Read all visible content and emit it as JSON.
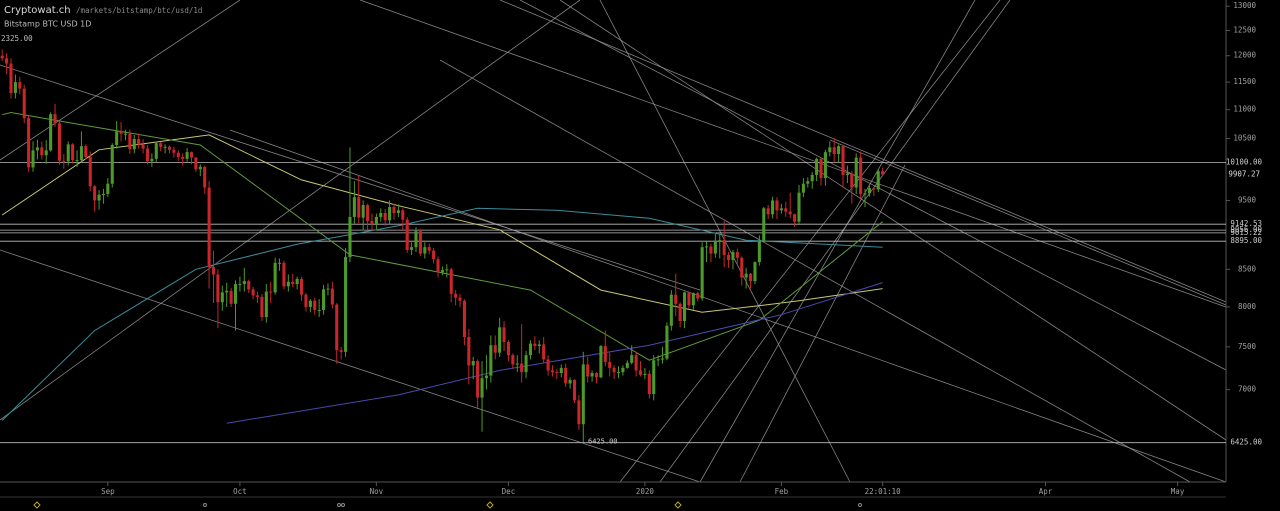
{
  "chart_data": {
    "type": "candlestick",
    "title": "Cryptowat.ch",
    "subtitle": "/markets/bitstamp/btc/usd/1d",
    "symbol": "Bitstamp BTC USD 1D",
    "corner_label": "2325.00",
    "log_scale": true,
    "grid": false,
    "up_color": "#4c9a2a",
    "down_color": "#c9262c",
    "xlim": [
      -0.5,
      278
    ],
    "ylim": [
      6030,
      13130
    ],
    "yticks": [
      13000,
      12500,
      12000,
      11500,
      11000,
      10500,
      9500,
      8500,
      8000,
      7500,
      7000
    ],
    "xticks": [
      {
        "value": 24,
        "label": "Sep"
      },
      {
        "value": 54,
        "label": "Oct"
      },
      {
        "value": 85,
        "label": "Nov"
      },
      {
        "value": 115,
        "label": "Dec"
      },
      {
        "value": 146,
        "label": "2020"
      },
      {
        "value": 177,
        "label": "Feb"
      },
      {
        "value": 200,
        "label": "22:01:10"
      },
      {
        "value": 237,
        "label": "Apr"
      },
      {
        "value": 267,
        "label": "May"
      }
    ],
    "levels": [
      {
        "value": 10100,
        "label": "10100.00"
      },
      {
        "value": 9142.53,
        "label": "9142.53"
      },
      {
        "value": 9056,
        "label": "9056.00"
      },
      {
        "value": 9015.22,
        "label": "9015.22"
      },
      {
        "value": 8895,
        "label": "8895.00"
      },
      {
        "value": 6425,
        "label": "6425.00"
      }
    ],
    "open": [
      12000,
      11950,
      11850,
      11300,
      11500,
      11380,
      10850,
      10020,
      10300,
      10350,
      10220,
      10300,
      10920,
      10760,
      10130,
      10120,
      10400,
      10140,
      10140,
      10370,
      10190,
      9720,
      9500,
      9590,
      9600,
      9760,
      10390,
      10620,
      10580,
      10580,
      10320,
      10490,
      10400,
      10330,
      10120,
      10160,
      10420,
      10360,
      10360,
      10310,
      10260,
      10190,
      10160,
      10270,
      10180,
      9990,
      10030,
      9700,
      8530,
      8430,
      8060,
      8190,
      8210,
      8040,
      8300,
      8300,
      8340,
      8230,
      8150,
      8130,
      7870,
      8200,
      8190,
      8590,
      8590,
      8270,
      8330,
      8300,
      8370,
      8160,
      8000,
      8080,
      7960,
      7960,
      8230,
      8240,
      8030,
      7460,
      7440,
      8670,
      9250,
      9550,
      9240,
      9430,
      9190,
      9150,
      9250,
      9310,
      9200,
      9400,
      9310,
      9350,
      9210,
      8770,
      8810,
      9040,
      8720,
      8810,
      8760,
      8640,
      8460,
      8490,
      8500,
      8170,
      8120,
      8080,
      7620,
      7280,
      7330,
      6910,
      7130,
      7160,
      7520,
      7430,
      7740,
      7560,
      7400,
      7290,
      7300,
      7200,
      7400,
      7540,
      7510,
      7530,
      7350,
      7220,
      7200,
      7190,
      7250,
      7070,
      7110,
      6880,
      6620,
      7290,
      7150,
      7190,
      7140,
      7510,
      7320,
      7250,
      7200,
      7200,
      7250,
      7310,
      7400,
      7220,
      7170,
      7180,
      6950,
      7340,
      7350,
      7360,
      7760,
      8160,
      8040,
      7820,
      8190,
      8020,
      8180,
      8110,
      8810,
      8820,
      8720,
      8900,
      8910,
      8700,
      8630,
      8740,
      8660,
      8390,
      8440,
      8340,
      8600,
      8900,
      9380,
      9290,
      9500,
      9350,
      9380,
      9330,
      9290,
      9180,
      9620,
      9760,
      9800,
      9900,
      10160,
      9850,
      10270,
      10350,
      10240,
      10370,
      9900,
      9920,
      9700,
      10180,
      9600,
      9610,
      9690,
      9670,
      9960
    ],
    "high": [
      12120,
      12050,
      11950,
      11640,
      11600,
      11450,
      10900,
      10450,
      10480,
      10450,
      10470,
      10950,
      11100,
      10800,
      10240,
      10450,
      10420,
      10300,
      10620,
      10400,
      10280,
      9740,
      9660,
      9680,
      9850,
      10420,
      10800,
      10780,
      10650,
      10650,
      10560,
      10580,
      10490,
      10390,
      10250,
      10450,
      10440,
      10400,
      10380,
      10360,
      10300,
      10250,
      10340,
      10280,
      10190,
      10070,
      10050,
      9800,
      8760,
      8500,
      8280,
      8320,
      8250,
      8350,
      8400,
      8520,
      8360,
      8260,
      8200,
      8170,
      8300,
      8330,
      8660,
      8650,
      8620,
      8430,
      8440,
      8400,
      8400,
      8180,
      8100,
      8120,
      8100,
      8290,
      8310,
      8330,
      8050,
      7500,
      8800,
      10350,
      9800,
      9900,
      9500,
      9450,
      9300,
      9300,
      9380,
      9370,
      9500,
      9450,
      9440,
      9380,
      9250,
      8880,
      9100,
      9070,
      8880,
      8860,
      8800,
      8680,
      8540,
      8570,
      8520,
      8220,
      8170,
      8100,
      7720,
      7380,
      7350,
      7330,
      7400,
      7640,
      7640,
      7860,
      7820,
      7580,
      7420,
      7400,
      7780,
      7450,
      7580,
      7630,
      7580,
      7620,
      7400,
      7280,
      7240,
      7290,
      7300,
      7140,
      7120,
      6940,
      7440,
      7380,
      7220,
      7200,
      7520,
      7700,
      7430,
      7280,
      7270,
      7280,
      7340,
      7520,
      7440,
      7330,
      7250,
      7220,
      7400,
      7400,
      7500,
      7800,
      8220,
      8440,
      8060,
      8200,
      8200,
      8190,
      8200,
      8880,
      8900,
      8860,
      9000,
      9000,
      9190,
      8740,
      8770,
      8790,
      8680,
      8520,
      8450,
      8610,
      8980,
      9400,
      9430,
      9560,
      9550,
      9450,
      9480,
      9620,
      9300,
      9740,
      9850,
      9860,
      9950,
      10180,
      10180,
      10310,
      10450,
      10500,
      10400,
      10390,
      10050,
      9960,
      10250,
      10280,
      9680,
      9750,
      9710,
      9990,
      10020
    ],
    "low": [
      11900,
      11650,
      11200,
      11200,
      11280,
      10760,
      9950,
      9950,
      10150,
      10150,
      10080,
      10280,
      10700,
      10060,
      10000,
      10050,
      10080,
      10030,
      10100,
      10150,
      9640,
      9330,
      9360,
      9450,
      9550,
      9700,
      10330,
      10450,
      10470,
      10240,
      10250,
      10330,
      10250,
      10070,
      10030,
      10110,
      10290,
      10250,
      10250,
      10180,
      10130,
      10050,
      10110,
      10070,
      9950,
      9880,
      9600,
      8240,
      8050,
      7730,
      7950,
      8000,
      8000,
      7700,
      8200,
      8200,
      8180,
      8100,
      8050,
      7820,
      7800,
      8050,
      8160,
      8480,
      8230,
      8200,
      8260,
      8230,
      8080,
      7940,
      7930,
      7900,
      7870,
      7900,
      8150,
      7980,
      7300,
      7350,
      7380,
      8600,
      9150,
      9160,
      9050,
      9060,
      9040,
      9070,
      9180,
      9120,
      9140,
      9210,
      9250,
      9060,
      8730,
      8700,
      8740,
      8680,
      8650,
      8710,
      8580,
      8390,
      8420,
      8390,
      8060,
      8020,
      8000,
      7520,
      7060,
      7120,
      6800,
      6540,
      7000,
      7080,
      7350,
      7380,
      7450,
      7330,
      7240,
      7200,
      7080,
      7130,
      7350,
      7460,
      7420,
      7310,
      7160,
      7150,
      7120,
      7140,
      7030,
      7010,
      6850,
      6560,
      6430,
      7080,
      7090,
      7070,
      7130,
      7270,
      7150,
      7120,
      7130,
      7160,
      7240,
      7290,
      7150,
      7150,
      7120,
      6900,
      6880,
      7270,
      7300,
      7340,
      7700,
      7880,
      7740,
      7730,
      7980,
      7960,
      8070,
      8080,
      8600,
      8600,
      8660,
      8650,
      8530,
      8520,
      8500,
      8580,
      8280,
      8240,
      8240,
      8300,
      8550,
      8880,
      9220,
      9230,
      9220,
      9300,
      9250,
      9230,
      9110,
      9150,
      9550,
      9700,
      9680,
      9800,
      9730,
      9730,
      10200,
      10100,
      10100,
      9700,
      9770,
      9450,
      9600,
      9530,
      9400,
      9560,
      9570,
      9630,
      9880
    ],
    "close": [
      11950,
      11850,
      11300,
      11500,
      11380,
      10850,
      10020,
      10300,
      10350,
      10220,
      10300,
      10920,
      10760,
      10130,
      10120,
      10400,
      10140,
      10140,
      10370,
      10190,
      9720,
      9500,
      9590,
      9600,
      9760,
      10390,
      10620,
      10580,
      10580,
      10320,
      10490,
      10400,
      10330,
      10120,
      10160,
      10420,
      10360,
      10360,
      10310,
      10260,
      10190,
      10160,
      10270,
      10180,
      9990,
      10030,
      9700,
      8530,
      8430,
      8060,
      8190,
      8210,
      8040,
      8300,
      8300,
      8340,
      8230,
      8150,
      8130,
      7870,
      8200,
      8190,
      8590,
      8590,
      8270,
      8330,
      8300,
      8370,
      8160,
      8000,
      8080,
      7960,
      7960,
      8230,
      8240,
      8030,
      7460,
      7440,
      8670,
      9250,
      9550,
      9240,
      9430,
      9190,
      9150,
      9250,
      9310,
      9200,
      9400,
      9310,
      9350,
      9210,
      8770,
      8810,
      9040,
      8720,
      8810,
      8760,
      8640,
      8460,
      8490,
      8500,
      8170,
      8120,
      8080,
      7620,
      7280,
      7330,
      6910,
      7130,
      7160,
      7520,
      7430,
      7740,
      7560,
      7400,
      7290,
      7300,
      7200,
      7400,
      7540,
      7510,
      7530,
      7350,
      7220,
      7200,
      7190,
      7250,
      7070,
      7110,
      6880,
      6620,
      7290,
      7150,
      7190,
      7140,
      7510,
      7320,
      7250,
      7200,
      7200,
      7250,
      7310,
      7400,
      7220,
      7170,
      7180,
      6950,
      7340,
      7350,
      7360,
      7760,
      8160,
      8040,
      7820,
      8190,
      8020,
      8180,
      8110,
      8810,
      8820,
      8720,
      8900,
      8910,
      8700,
      8630,
      8740,
      8660,
      8390,
      8440,
      8340,
      8600,
      8900,
      9380,
      9290,
      9500,
      9350,
      9380,
      9330,
      9290,
      9180,
      9620,
      9760,
      9800,
      9900,
      10160,
      9850,
      10270,
      10350,
      10240,
      10370,
      9900,
      9920,
      9700,
      10180,
      9600,
      9610,
      9690,
      9670,
      9960,
      9907.27
    ],
    "moving_averages": [
      {
        "color": "#c9c872",
        "x": [
          0,
          22,
          47,
          68,
          90,
          113,
          136,
          159,
          174,
          181,
          200
        ],
        "values": [
          9280,
          10310,
          10560,
          9820,
          9420,
          9060,
          8220,
          7930,
          8030,
          8080,
          8240
        ]
      },
      {
        "color": "#5e9a3c",
        "x": [
          0,
          2,
          13,
          45,
          79,
          120,
          147,
          172,
          200
        ],
        "values": [
          10910,
          10950,
          10800,
          10390,
          8700,
          8220,
          7340,
          7830,
          9180
        ]
      },
      {
        "color": "#3a8c9c",
        "x": [
          0,
          21,
          44,
          67,
          90,
          108,
          126,
          147,
          169,
          200
        ],
        "values": [
          6660,
          7700,
          8500,
          8850,
          9120,
          9380,
          9350,
          9230,
          8910,
          8810
        ]
      },
      {
        "color": "#4a48ac",
        "x": [
          51,
          90,
          113,
          147,
          177,
          200
        ],
        "values": [
          6630,
          6940,
          7220,
          7520,
          7900,
          8320
        ]
      }
    ]
  }
}
